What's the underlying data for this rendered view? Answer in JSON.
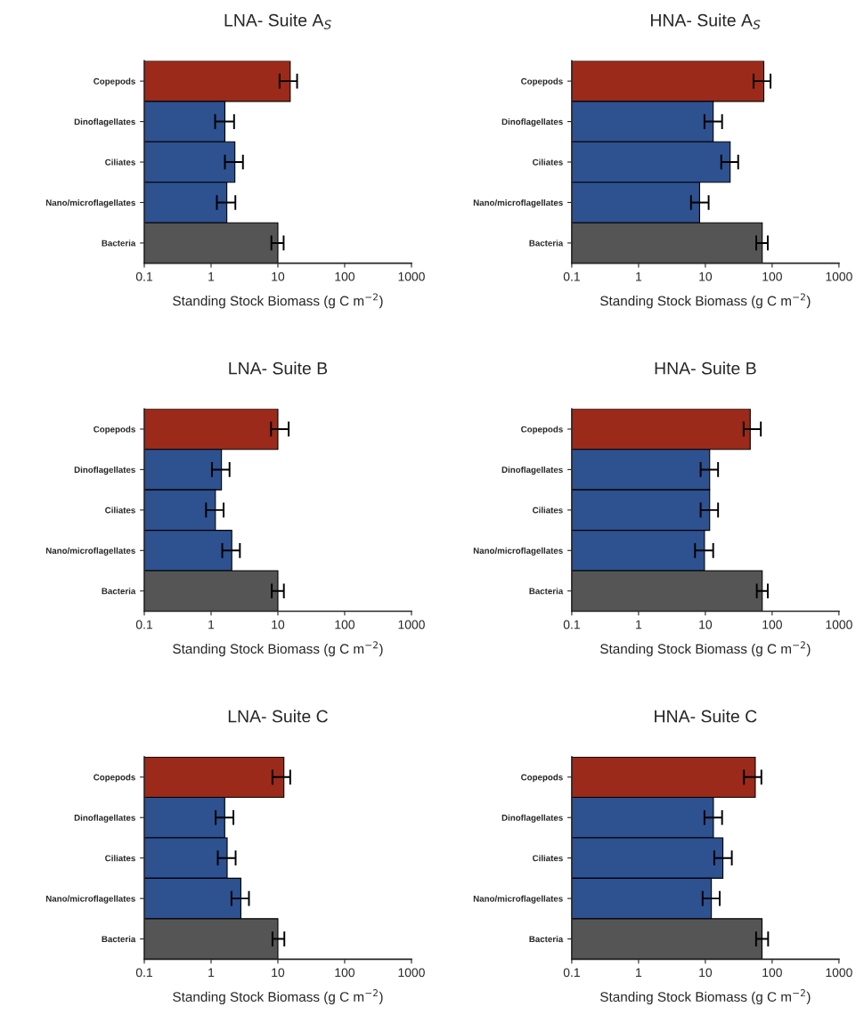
{
  "chart_data": [
    {
      "type": "bar",
      "orientation": "horizontal",
      "title": "LNA- Suite A$_{S}$",
      "xlabel": "Standing Stock Biomass (g C m$^{−2}$)",
      "log": "x",
      "xlim": [
        0.1,
        1000
      ],
      "xticks": [
        0.1,
        1,
        10,
        100,
        1000
      ],
      "grid": false,
      "legend": false,
      "categories": [
        "Copepods",
        "Dinoflagellates",
        "Ciliates",
        "Nano/microflagellates",
        "Bacteria"
      ],
      "values": [
        15.3,
        1.61,
        2.27,
        1.72,
        10
      ],
      "errors": [
        [
          10.6,
          19.4
        ],
        [
          1.15,
          2.21
        ],
        [
          1.61,
          3.0
        ],
        [
          1.22,
          2.31
        ],
        [
          8.0,
          12.2
        ]
      ],
      "colors": [
        "#9b2a1a",
        "#2e5190",
        "#2e5190",
        "#2e5190",
        "#555555"
      ]
    },
    {
      "type": "bar",
      "orientation": "horizontal",
      "title": "HNA- Suite A$_{S}$",
      "xlabel": "Standing Stock Biomass (g C m$^{−2}$)",
      "log": "x",
      "xlim": [
        0.1,
        1000
      ],
      "xticks": [
        0.1,
        1,
        10,
        100,
        1000
      ],
      "grid": false,
      "legend": false,
      "categories": [
        "Copepods",
        "Dinoflagellates",
        "Ciliates",
        "Nano/microflagellates",
        "Bacteria"
      ],
      "values": [
        75,
        13.1,
        23.5,
        8.2,
        71
      ],
      "errors": [
        [
          52.7,
          94.6
        ],
        [
          9.7,
          17.8
        ],
        [
          17.3,
          31.0
        ],
        [
          6.1,
          11.2
        ],
        [
          57.8,
          86
        ]
      ],
      "colors": [
        "#9b2a1a",
        "#2e5190",
        "#2e5190",
        "#2e5190",
        "#555555"
      ]
    },
    {
      "type": "bar",
      "orientation": "horizontal",
      "title": "LNA- Suite B",
      "xlabel": "Standing Stock Biomass (g C m$^{−2}$)",
      "log": "x",
      "xlim": [
        0.1,
        1000
      ],
      "xticks": [
        0.1,
        1,
        10,
        100,
        1000
      ],
      "grid": false,
      "legend": false,
      "categories": [
        "Copepods",
        "Dinoflagellates",
        "Ciliates",
        "Nano/microflagellates",
        "Bacteria"
      ],
      "values": [
        10,
        1.43,
        1.16,
        2.04,
        10
      ],
      "errors": [
        [
          7.9,
          14.5
        ],
        [
          1.03,
          1.89
        ],
        [
          0.84,
          1.54
        ],
        [
          1.47,
          2.7
        ],
        [
          8.1,
          12.3
        ]
      ],
      "colors": [
        "#9b2a1a",
        "#2e5190",
        "#2e5190",
        "#2e5190",
        "#555555"
      ]
    },
    {
      "type": "bar",
      "orientation": "horizontal",
      "title": "HNA- Suite B",
      "xlabel": "Standing Stock Biomass (g C m$^{−2}$)",
      "log": "x",
      "xlim": [
        0.1,
        1000
      ],
      "xticks": [
        0.1,
        1,
        10,
        100,
        1000
      ],
      "grid": false,
      "legend": false,
      "categories": [
        "Copepods",
        "Dinoflagellates",
        "Ciliates",
        "Nano/microflagellates",
        "Bacteria"
      ],
      "values": [
        47,
        11.6,
        11.6,
        9.7,
        71
      ],
      "errors": [
        [
          37.4,
          67.7
        ],
        [
          8.5,
          15.5
        ],
        [
          8.5,
          15.5
        ],
        [
          7.0,
          13.1
        ],
        [
          58.9,
          86
        ]
      ],
      "colors": [
        "#9b2a1a",
        "#2e5190",
        "#2e5190",
        "#2e5190",
        "#555555"
      ]
    },
    {
      "type": "bar",
      "orientation": "horizontal",
      "title": "LNA- Suite C",
      "xlabel": "Standing Stock Biomass (g C m$^{−2}$)",
      "log": "x",
      "xlim": [
        0.1,
        1000
      ],
      "xticks": [
        0.1,
        1,
        10,
        100,
        1000
      ],
      "grid": false,
      "legend": false,
      "categories": [
        "Copepods",
        "Dinoflagellates",
        "Ciliates",
        "Nano/microflagellates",
        "Bacteria"
      ],
      "values": [
        12.3,
        1.6,
        1.74,
        2.79,
        10
      ],
      "errors": [
        [
          8.3,
          15.3
        ],
        [
          1.17,
          2.16
        ],
        [
          1.26,
          2.33
        ],
        [
          2.02,
          3.69
        ],
        [
          8.3,
          12.5
        ]
      ],
      "colors": [
        "#9b2a1a",
        "#2e5190",
        "#2e5190",
        "#2e5190",
        "#555555"
      ]
    },
    {
      "type": "bar",
      "orientation": "horizontal",
      "title": "HNA- Suite C",
      "xlabel": "Standing Stock Biomass (g C m$^{−2}$)",
      "log": "x",
      "xlim": [
        0.1,
        1000
      ],
      "xticks": [
        0.1,
        1,
        10,
        100,
        1000
      ],
      "grid": false,
      "legend": false,
      "categories": [
        "Copepods",
        "Dinoflagellates",
        "Ciliates",
        "Nano/microflagellates",
        "Bacteria"
      ],
      "values": [
        55.9,
        13.2,
        18.3,
        12.3,
        70.5
      ],
      "errors": [
        [
          37.8,
          69
        ],
        [
          9.7,
          17.8
        ],
        [
          13.6,
          24.9
        ],
        [
          9.1,
          16.4
        ],
        [
          57.5,
          87
        ]
      ],
      "colors": [
        "#9b2a1a",
        "#2e5190",
        "#2e5190",
        "#2e5190",
        "#555555"
      ]
    }
  ]
}
